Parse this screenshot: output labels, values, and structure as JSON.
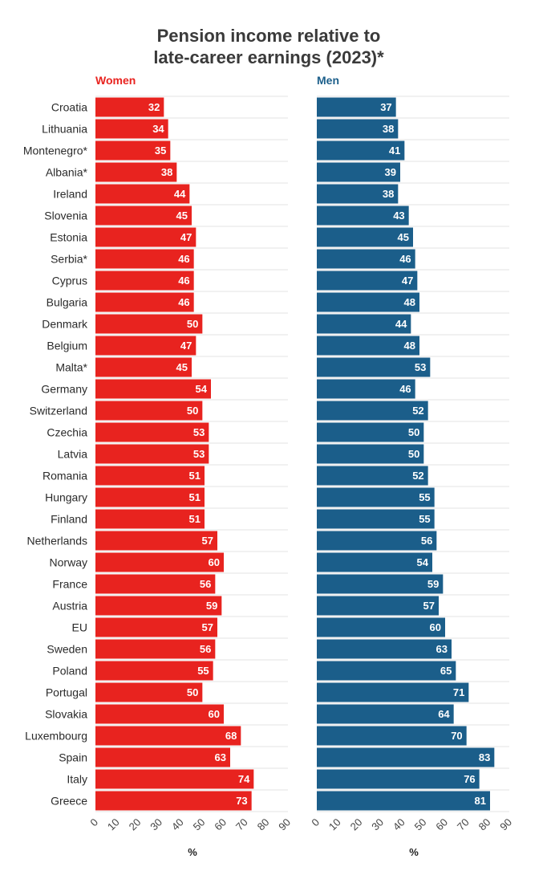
{
  "title_lines": [
    "Pension income relative to",
    "late-career earnings (2023)*"
  ],
  "colors": {
    "women": "#e8231f",
    "men": "#1b5e8a"
  },
  "chart_data": {
    "type": "bar",
    "orientation": "horizontal",
    "title": "Pension income relative to late-career earnings (2023)*",
    "categories": [
      "Croatia",
      "Lithuania",
      "Montenegro*",
      "Albania*",
      "Ireland",
      "Slovenia",
      "Estonia",
      "Serbia*",
      "Cyprus",
      "Bulgaria",
      "Denmark",
      "Belgium",
      "Malta*",
      "Germany",
      "Switzerland",
      "Czechia",
      "Latvia",
      "Romania",
      "Hungary",
      "Finland",
      "Netherlands",
      "Norway",
      "France",
      "Austria",
      "EU",
      "Sweden",
      "Poland",
      "Portugal",
      "Slovakia",
      "Luxembourg",
      "Spain",
      "Italy",
      "Greece"
    ],
    "series": [
      {
        "name": "Women",
        "values": [
          32,
          34,
          35,
          38,
          44,
          45,
          47,
          46,
          46,
          46,
          50,
          47,
          45,
          54,
          50,
          53,
          53,
          51,
          51,
          51,
          57,
          60,
          56,
          59,
          57,
          56,
          55,
          50,
          60,
          68,
          63,
          74,
          73
        ]
      },
      {
        "name": "Men",
        "values": [
          37,
          38,
          41,
          39,
          38,
          43,
          45,
          46,
          47,
          48,
          44,
          48,
          53,
          46,
          52,
          50,
          50,
          52,
          55,
          55,
          56,
          54,
          59,
          57,
          60,
          63,
          65,
          71,
          64,
          70,
          83,
          76,
          81
        ]
      }
    ],
    "xlabel": "%",
    "xlim": [
      0,
      90
    ],
    "xticks": [
      0,
      10,
      20,
      30,
      40,
      50,
      60,
      70,
      80,
      90
    ],
    "grid": true,
    "panels": "side-by-side"
  }
}
